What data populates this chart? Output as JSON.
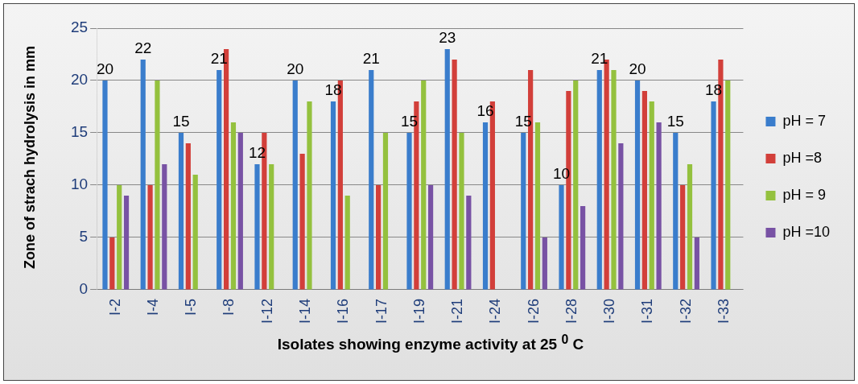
{
  "chart_data": {
    "type": "bar",
    "xlabel": "Isolates showing enzyme activity at 25 $^{0}$ C",
    "ylabel": "Zone of strach hydrolysis in mm",
    "categories": [
      "I-2",
      "I-4",
      "I-5",
      "I-8",
      "I-12",
      "I-14",
      "I-16",
      "I-17",
      "I-19",
      "I-21",
      "I-24",
      "I-26",
      "I-28",
      "I-30",
      "I-31",
      "I-32",
      "I-33"
    ],
    "series": [
      {
        "name": "pH = 7",
        "color": "#3a7dcc",
        "values": [
          20,
          22,
          15,
          21,
          12,
          20,
          18,
          21,
          15,
          23,
          16,
          15,
          10,
          21,
          20,
          15,
          18
        ],
        "value_labels": [
          "20",
          "22",
          "15",
          "21",
          "12",
          "20",
          "18",
          "21",
          "15",
          "23",
          "16",
          "15",
          "10",
          "21",
          "20",
          "15",
          "18"
        ]
      },
      {
        "name": "pH =8",
        "color": "#d23f3a",
        "values": [
          5,
          10,
          14,
          23,
          15,
          13,
          20,
          10,
          18,
          22,
          18,
          21,
          19,
          22,
          19,
          10,
          22
        ]
      },
      {
        "name": "pH = 9",
        "color": "#94c13e",
        "values": [
          10,
          20,
          11,
          16,
          12,
          18,
          9,
          15,
          20,
          15,
          0,
          16,
          20,
          21,
          18,
          12,
          20
        ]
      },
      {
        "name": "pH =10",
        "color": "#7852a4",
        "values": [
          9,
          12,
          0,
          15,
          0,
          0,
          0,
          0,
          10,
          9,
          0,
          5,
          8,
          14,
          16,
          5,
          0
        ]
      }
    ],
    "ylim": [
      0,
      25
    ],
    "yticks": [
      0,
      5,
      10,
      15,
      20,
      25
    ],
    "grid": "y",
    "legend": "right"
  }
}
